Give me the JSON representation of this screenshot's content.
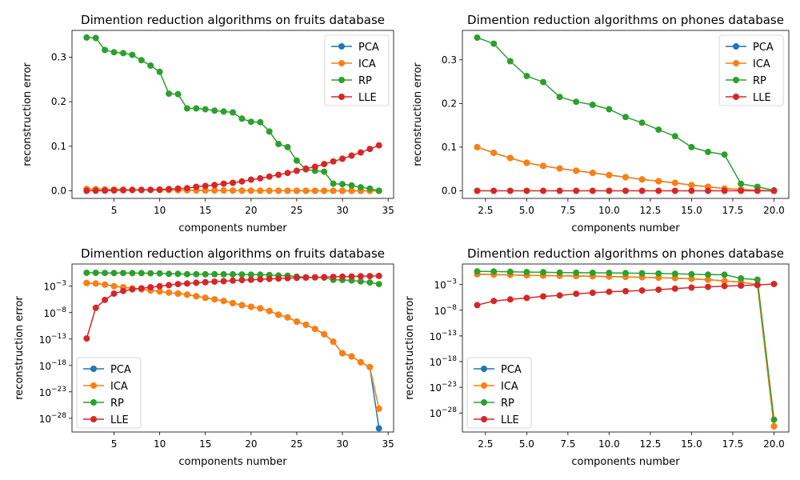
{
  "chart_data": [
    {
      "type": "line",
      "title": "Dimention reduction algorithms on fruits database",
      "xlabel": "components number",
      "ylabel": "reconstruction error",
      "yscale": "linear",
      "xlim": [
        0.4,
        35.6
      ],
      "ylim": [
        -0.017,
        0.36
      ],
      "xticks": [
        5,
        10,
        15,
        20,
        25,
        30,
        35
      ],
      "xtick_labels": [
        "5",
        "10",
        "15",
        "20",
        "25",
        "30",
        "35"
      ],
      "yticks": [
        0.0,
        0.1,
        0.2,
        0.3
      ],
      "ytick_labels": [
        "0.0",
        "0.1",
        "0.2",
        "0.3"
      ],
      "legend_position": "upper right",
      "series": [
        {
          "name": "PCA",
          "color": "#1f77b4",
          "x": [
            2,
            3,
            4,
            5,
            6,
            7,
            8,
            9,
            10,
            11,
            12,
            13,
            14,
            15,
            16,
            17,
            18,
            19,
            20,
            21,
            22,
            23,
            24,
            25,
            26,
            27,
            28,
            29,
            30,
            31,
            32,
            33,
            34
          ],
          "values": [
            0.004,
            0.0037,
            0.0033,
            0.003,
            0.0027,
            0.0024,
            0.0022,
            0.002,
            0.0018,
            0.0016,
            0.0014,
            0.0012,
            0.001,
            0.0009,
            0.0008,
            0.0007,
            0.0006,
            0.0005,
            0.0004,
            0.0003,
            0.0003,
            0.0002,
            0.0002,
            0.0001,
            0.0001,
            0.0001,
            0.0,
            0.0,
            0.0,
            0.0,
            0.0,
            0.0,
            0.0
          ]
        },
        {
          "name": "ICA",
          "color": "#ff7f0e",
          "x": [
            2,
            3,
            4,
            5,
            6,
            7,
            8,
            9,
            10,
            11,
            12,
            13,
            14,
            15,
            16,
            17,
            18,
            19,
            20,
            21,
            22,
            23,
            24,
            25,
            26,
            27,
            28,
            29,
            30,
            31,
            32,
            33,
            34
          ],
          "values": [
            0.004,
            0.0037,
            0.0033,
            0.003,
            0.0027,
            0.0024,
            0.0022,
            0.002,
            0.0018,
            0.0016,
            0.0014,
            0.0012,
            0.001,
            0.0009,
            0.0008,
            0.0007,
            0.0006,
            0.0005,
            0.0004,
            0.0003,
            0.0003,
            0.0002,
            0.0002,
            0.0001,
            0.0001,
            0.0001,
            0.0,
            0.0,
            0.0,
            0.0,
            0.0,
            0.0,
            0.0
          ]
        },
        {
          "name": "RP",
          "color": "#2ca02c",
          "x": [
            2,
            3,
            4,
            5,
            6,
            7,
            8,
            9,
            10,
            11,
            12,
            13,
            14,
            15,
            16,
            17,
            18,
            19,
            20,
            21,
            22,
            23,
            24,
            25,
            26,
            27,
            28,
            29,
            30,
            31,
            32,
            33,
            34
          ],
          "values": [
            0.344,
            0.343,
            0.316,
            0.311,
            0.309,
            0.305,
            0.293,
            0.281,
            0.267,
            0.218,
            0.217,
            0.185,
            0.185,
            0.183,
            0.18,
            0.178,
            0.176,
            0.162,
            0.155,
            0.154,
            0.133,
            0.105,
            0.098,
            0.068,
            0.048,
            0.045,
            0.043,
            0.016,
            0.015,
            0.012,
            0.008,
            0.005,
            0.0
          ]
        },
        {
          "name": "LLE",
          "color": "#d62728",
          "x": [
            2,
            3,
            4,
            5,
            6,
            7,
            8,
            9,
            10,
            11,
            12,
            13,
            14,
            15,
            16,
            17,
            18,
            19,
            20,
            21,
            22,
            23,
            24,
            25,
            26,
            27,
            28,
            29,
            30,
            31,
            32,
            33,
            34
          ],
          "values": [
            0.0,
            0.0002,
            0.0005,
            0.0009,
            0.0013,
            0.0016,
            0.0019,
            0.0023,
            0.003,
            0.004,
            0.005,
            0.006,
            0.009,
            0.011,
            0.013,
            0.016,
            0.018,
            0.021,
            0.025,
            0.028,
            0.032,
            0.036,
            0.04,
            0.045,
            0.05,
            0.054,
            0.06,
            0.066,
            0.072,
            0.079,
            0.086,
            0.094,
            0.102
          ]
        }
      ]
    },
    {
      "type": "line",
      "title": "Dimention reduction algorithms on phones database",
      "xlabel": "components number",
      "ylabel": "reconstruction error",
      "yscale": "linear",
      "xlim": [
        1.1,
        20.9
      ],
      "ylim": [
        -0.0175,
        0.3675
      ],
      "xticks": [
        2.5,
        5.0,
        7.5,
        10.0,
        12.5,
        15.0,
        17.5,
        20.0
      ],
      "xtick_labels": [
        "2.5",
        "5.0",
        "7.5",
        "10.0",
        "12.5",
        "15.0",
        "17.5",
        "20.0"
      ],
      "yticks": [
        0.0,
        0.1,
        0.2,
        0.3
      ],
      "ytick_labels": [
        "0.0",
        "0.1",
        "0.2",
        "0.3"
      ],
      "legend_position": "upper right",
      "series": [
        {
          "name": "PCA",
          "color": "#1f77b4",
          "x": [
            2,
            3,
            4,
            5,
            6,
            7,
            8,
            9,
            10,
            11,
            12,
            13,
            14,
            15,
            16,
            17,
            18,
            19,
            20
          ],
          "values": [
            0.1,
            0.087,
            0.075,
            0.064,
            0.057,
            0.051,
            0.046,
            0.041,
            0.036,
            0.031,
            0.026,
            0.022,
            0.018,
            0.013,
            0.009,
            0.005,
            0.003,
            0.001,
            0.0
          ]
        },
        {
          "name": "ICA",
          "color": "#ff7f0e",
          "x": [
            2,
            3,
            4,
            5,
            6,
            7,
            8,
            9,
            10,
            11,
            12,
            13,
            14,
            15,
            16,
            17,
            18,
            19,
            20
          ],
          "values": [
            0.1,
            0.087,
            0.075,
            0.064,
            0.057,
            0.051,
            0.046,
            0.041,
            0.036,
            0.031,
            0.026,
            0.022,
            0.018,
            0.013,
            0.009,
            0.005,
            0.003,
            0.001,
            0.0
          ]
        },
        {
          "name": "RP",
          "color": "#2ca02c",
          "x": [
            2,
            3,
            4,
            5,
            6,
            7,
            8,
            9,
            10,
            11,
            12,
            13,
            14,
            15,
            16,
            17,
            18,
            19,
            20
          ],
          "values": [
            0.351,
            0.337,
            0.297,
            0.263,
            0.249,
            0.215,
            0.204,
            0.197,
            0.187,
            0.169,
            0.156,
            0.14,
            0.125,
            0.1,
            0.089,
            0.083,
            0.016,
            0.009,
            0.001
          ]
        },
        {
          "name": "LLE",
          "color": "#d62728",
          "x": [
            2,
            3,
            4,
            5,
            6,
            7,
            8,
            9,
            10,
            11,
            12,
            13,
            14,
            15,
            16,
            17,
            18,
            19,
            20
          ],
          "values": [
            0.0,
            0.0,
            0.0,
            0.0,
            0.0,
            0.0,
            0.0,
            0.0,
            0.0,
            0.0,
            0.0,
            0.0,
            0.0,
            0.0,
            0.0,
            0.0,
            0.0,
            0.0,
            0.0
          ]
        }
      ]
    },
    {
      "type": "line",
      "title": "Dimention reduction algorithms on fruits database",
      "xlabel": "components number",
      "ylabel": "reconstruction error",
      "yscale": "log",
      "xlim": [
        0.4,
        35.6
      ],
      "ylim_exponent": [
        -30.6,
        1.2
      ],
      "xticks": [
        5,
        10,
        15,
        20,
        25,
        30,
        35
      ],
      "xtick_labels": [
        "5",
        "10",
        "15",
        "20",
        "25",
        "30",
        "35"
      ],
      "yticks_exponent": [
        -3,
        -8,
        -13,
        -18,
        -23,
        -28
      ],
      "ytick_base": "10",
      "legend_position": "lower left",
      "series": [
        {
          "name": "PCA",
          "color": "#1f77b4",
          "x": [
            2,
            3,
            4,
            5,
            6,
            7,
            8,
            9,
            10,
            11,
            12,
            13,
            14,
            15,
            16,
            17,
            18,
            19,
            20,
            21,
            22,
            23,
            24,
            25,
            26,
            27,
            28,
            29,
            30,
            31,
            32,
            33,
            34
          ],
          "values_exponent": [
            -2.4,
            -2.5,
            -2.7,
            -3.0,
            -3.2,
            -3.4,
            -3.6,
            -3.8,
            -4.0,
            -4.2,
            -4.4,
            -4.6,
            -4.9,
            -5.2,
            -5.5,
            -5.8,
            -6.2,
            -6.6,
            -6.9,
            -7.2,
            -7.7,
            -8.4,
            -8.9,
            -9.7,
            -10.3,
            -11.1,
            -12.1,
            -13.5,
            -15.7,
            -16.3,
            -17.4,
            -18.3,
            -29.9
          ]
        },
        {
          "name": "ICA",
          "color": "#ff7f0e",
          "x": [
            2,
            3,
            4,
            5,
            6,
            7,
            8,
            9,
            10,
            11,
            12,
            13,
            14,
            15,
            16,
            17,
            18,
            19,
            20,
            21,
            22,
            23,
            24,
            25,
            26,
            27,
            28,
            29,
            30,
            31,
            32,
            33,
            34
          ],
          "values_exponent": [
            -2.4,
            -2.5,
            -2.7,
            -3.0,
            -3.2,
            -3.4,
            -3.6,
            -3.8,
            -4.0,
            -4.2,
            -4.4,
            -4.6,
            -4.9,
            -5.2,
            -5.5,
            -5.8,
            -6.2,
            -6.6,
            -6.9,
            -7.2,
            -7.7,
            -8.4,
            -8.9,
            -9.7,
            -10.3,
            -11.1,
            -12.1,
            -13.5,
            -15.7,
            -16.3,
            -17.4,
            -18.3,
            -26.2
          ]
        },
        {
          "name": "RP",
          "color": "#2ca02c",
          "x": [
            2,
            3,
            4,
            5,
            6,
            7,
            8,
            9,
            10,
            11,
            12,
            13,
            14,
            15,
            16,
            17,
            18,
            19,
            20,
            21,
            22,
            23,
            24,
            25,
            26,
            27,
            28,
            29,
            30,
            31,
            32,
            33,
            34
          ],
          "values_exponent": [
            -0.46,
            -0.47,
            -0.5,
            -0.51,
            -0.51,
            -0.52,
            -0.53,
            -0.55,
            -0.57,
            -0.66,
            -0.66,
            -0.73,
            -0.73,
            -0.74,
            -0.74,
            -0.75,
            -0.75,
            -0.79,
            -0.81,
            -0.81,
            -0.88,
            -0.98,
            -1.01,
            -1.17,
            -1.32,
            -1.35,
            -1.37,
            -1.8,
            -1.82,
            -1.92,
            -2.1,
            -2.3,
            -2.6
          ]
        },
        {
          "name": "LLE",
          "color": "#d62728",
          "x": [
            2,
            3,
            4,
            5,
            6,
            7,
            8,
            9,
            10,
            11,
            12,
            13,
            14,
            15,
            16,
            17,
            18,
            19,
            20,
            21,
            22,
            23,
            24,
            25,
            26,
            27,
            28,
            29,
            30,
            31,
            32,
            33,
            34
          ],
          "values_exponent": [
            -12.9,
            -7.1,
            -5.6,
            -4.4,
            -3.9,
            -3.6,
            -3.4,
            -3.2,
            -3.0,
            -2.8,
            -2.6,
            -2.5,
            -2.35,
            -2.25,
            -2.15,
            -2.05,
            -1.95,
            -1.85,
            -1.78,
            -1.7,
            -1.62,
            -1.55,
            -1.48,
            -1.42,
            -1.37,
            -1.32,
            -1.28,
            -1.24,
            -1.2,
            -1.16,
            -1.12,
            -1.08,
            -1.05
          ]
        }
      ]
    },
    {
      "type": "line",
      "title": "Dimention reduction algorithms on phones database",
      "xlabel": "components number",
      "ylabel": "reconstruction error",
      "yscale": "log",
      "xlim": [
        1.1,
        20.9
      ],
      "ylim_exponent": [
        -31.7,
        1.0
      ],
      "xticks": [
        2.5,
        5.0,
        7.5,
        10.0,
        12.5,
        15.0,
        17.5,
        20.0
      ],
      "xtick_labels": [
        "2.5",
        "5.0",
        "7.5",
        "10.0",
        "12.5",
        "15.0",
        "17.5",
        "20.0"
      ],
      "yticks_exponent": [
        -3,
        -8,
        -13,
        -18,
        -23,
        -28
      ],
      "ytick_base": "10",
      "legend_position": "lower left",
      "series": [
        {
          "name": "PCA",
          "color": "#1f77b4",
          "x": [
            2,
            3,
            4,
            5,
            6,
            7,
            8,
            9,
            10,
            11,
            12,
            13,
            14,
            15,
            16,
            17,
            18,
            19,
            20
          ],
          "values_exponent": [
            -1.0,
            -1.06,
            -1.12,
            -1.19,
            -1.24,
            -1.29,
            -1.34,
            -1.39,
            -1.44,
            -1.51,
            -1.59,
            -1.66,
            -1.74,
            -1.89,
            -2.05,
            -2.3,
            -2.52,
            -3.0,
            -30.6
          ]
        },
        {
          "name": "ICA",
          "color": "#ff7f0e",
          "x": [
            2,
            3,
            4,
            5,
            6,
            7,
            8,
            9,
            10,
            11,
            12,
            13,
            14,
            15,
            16,
            17,
            18,
            19,
            20
          ],
          "values_exponent": [
            -1.0,
            -1.06,
            -1.12,
            -1.19,
            -1.24,
            -1.29,
            -1.34,
            -1.39,
            -1.44,
            -1.51,
            -1.59,
            -1.66,
            -1.74,
            -1.89,
            -2.05,
            -2.3,
            -2.52,
            -3.0,
            -30.6
          ]
        },
        {
          "name": "RP",
          "color": "#2ca02c",
          "x": [
            2,
            3,
            4,
            5,
            6,
            7,
            8,
            9,
            10,
            11,
            12,
            13,
            14,
            15,
            16,
            17,
            18,
            19,
            20
          ],
          "values_exponent": [
            -0.45,
            -0.47,
            -0.53,
            -0.58,
            -0.6,
            -0.67,
            -0.69,
            -0.71,
            -0.73,
            -0.77,
            -0.81,
            -0.85,
            -0.9,
            -1.0,
            -1.05,
            -1.08,
            -1.8,
            -2.05,
            -29.3
          ]
        },
        {
          "name": "LLE",
          "color": "#d62728",
          "x": [
            2,
            3,
            4,
            5,
            6,
            7,
            8,
            9,
            10,
            11,
            12,
            13,
            14,
            15,
            16,
            17,
            18,
            19,
            20
          ],
          "values_exponent": [
            -7.0,
            -6.2,
            -5.9,
            -5.6,
            -5.3,
            -5.1,
            -4.8,
            -4.6,
            -4.4,
            -4.3,
            -4.15,
            -4.0,
            -3.8,
            -3.6,
            -3.45,
            -3.3,
            -3.2,
            -3.1,
            -2.9
          ]
        }
      ]
    }
  ]
}
